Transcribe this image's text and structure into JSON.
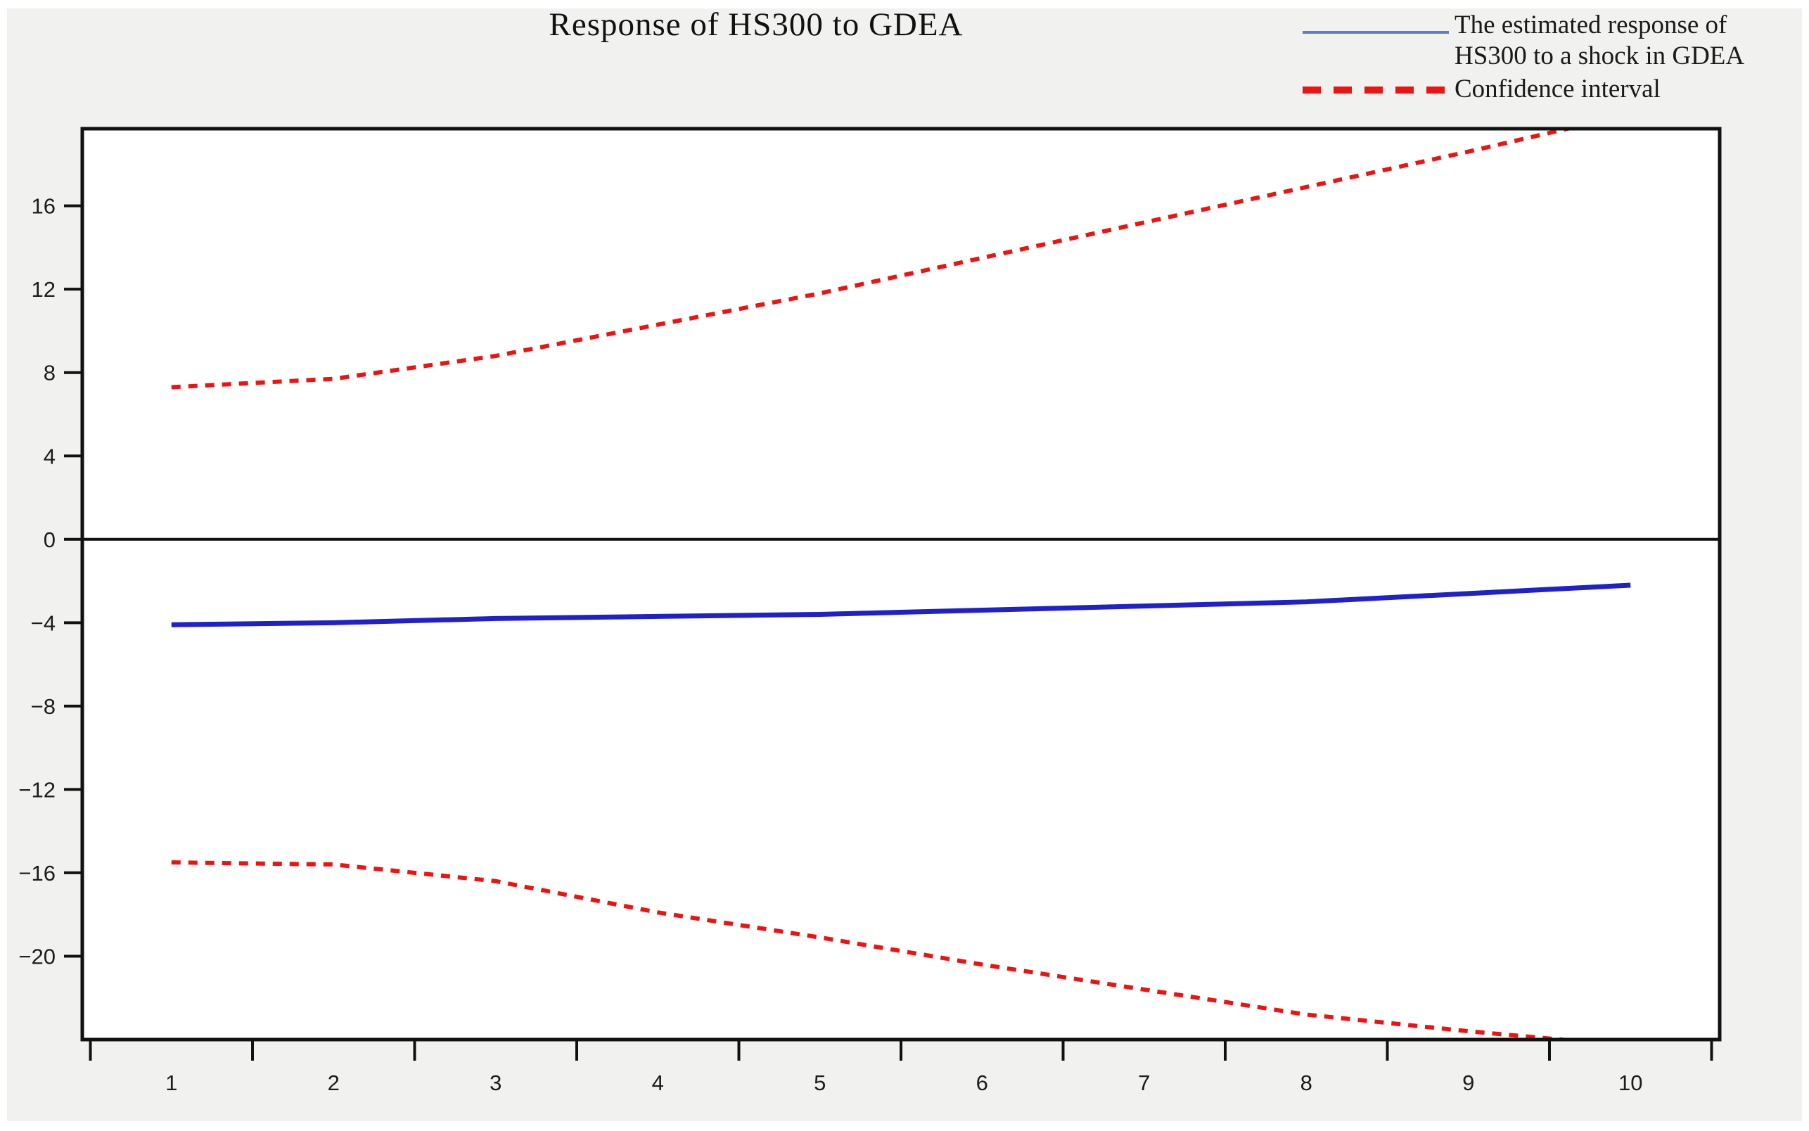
{
  "title": "Response of HS300 to GDEA",
  "legend": {
    "items": [
      {
        "id": "estimated-response",
        "label_lines": [
          "The estimated response of",
          "HS300 to a shock in GDEA"
        ],
        "style": "solid",
        "color": "#5b7fd0"
      },
      {
        "id": "confidence-interval",
        "label_lines": [
          "Confidence interval"
        ],
        "style": "dashed",
        "color": "#ee1311"
      }
    ]
  },
  "chart_data": {
    "type": "line",
    "title": "Response of HS300 to GDEA",
    "xlabel": "",
    "ylabel": "",
    "x": [
      1,
      2,
      3,
      4,
      5,
      6,
      7,
      8,
      9,
      10
    ],
    "series": [
      {
        "name": "The estimated response of HS300 to a shock in GDEA",
        "values": [
          -4.1,
          -4.0,
          -3.8,
          -3.7,
          -3.6,
          -3.4,
          -3.2,
          -3.0,
          -2.6,
          -2.2
        ],
        "color": "#2021c9",
        "style": "solid"
      },
      {
        "name": "Confidence interval (upper band)",
        "values": [
          7.3,
          7.7,
          8.8,
          10.3,
          11.8,
          13.5,
          15.2,
          16.9,
          18.6,
          20.4
        ],
        "color": "#ee1311",
        "style": "dashed"
      },
      {
        "name": "Confidence interval (lower band)",
        "values": [
          -15.5,
          -15.6,
          -16.4,
          -17.9,
          -19.1,
          -20.4,
          -21.6,
          -22.8,
          -23.6,
          -24.3
        ],
        "color": "#ee1311",
        "style": "dashed"
      }
    ],
    "xlim": [
      0.45,
      10.55
    ],
    "ylim": [
      -24.0,
      19.7
    ],
    "x_ticks": [
      {
        "value": 1,
        "label": "1"
      },
      {
        "value": 2,
        "label": "2"
      },
      {
        "value": 3,
        "label": "3"
      },
      {
        "value": 4,
        "label": "4"
      },
      {
        "value": 5,
        "label": "5"
      },
      {
        "value": 6,
        "label": "6"
      },
      {
        "value": 7,
        "label": "7"
      },
      {
        "value": 8,
        "label": "8"
      },
      {
        "value": 9,
        "label": "9"
      },
      {
        "value": 10,
        "label": "10"
      }
    ],
    "x_tick_marks": [
      0.5,
      1.5,
      2.5,
      3.5,
      4.5,
      5.5,
      6.5,
      7.5,
      8.5,
      9.5,
      10.5
    ],
    "y_ticks": [
      {
        "value": 16,
        "label": "16"
      },
      {
        "value": 12,
        "label": "12"
      },
      {
        "value": 8,
        "label": "8"
      },
      {
        "value": 4,
        "label": "4"
      },
      {
        "value": 0,
        "label": "0"
      },
      {
        "value": -4,
        "label": "−4"
      },
      {
        "value": -8,
        "label": "−8"
      },
      {
        "value": -12,
        "label": "−12"
      },
      {
        "value": -16,
        "label": "−16"
      },
      {
        "value": -20,
        "label": "−20"
      }
    ],
    "zero_line": true,
    "grid": false,
    "legend_position": "top-right",
    "plot_background": "#ffffff",
    "page_background": "#f1f1f0",
    "axis_color": "#111111"
  }
}
